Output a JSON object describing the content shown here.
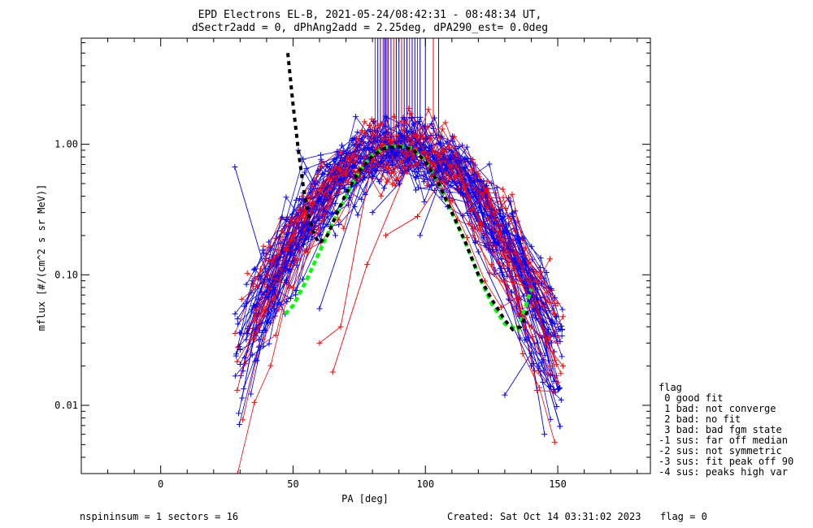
{
  "header": {
    "title_line1": "EPD Electrons EL-B, 2021-05-24/08:42:31 - 08:48:34 UT,",
    "title_line2": "dSectr2add = 0, dPhAng2add = 2.25deg, dPA290_est=   0.0deg"
  },
  "footer": {
    "left": "nspininsum =  1  sectors = 16",
    "created": "Created: Sat Oct 14 03:31:02 2023",
    "flag": "flag = 0"
  },
  "legend": {
    "title": "flag",
    "items": [
      " 0 good fit",
      " 1 bad: not converge",
      " 2 bad: no fit",
      " 3 bad: bad fgm state",
      "-1 sus: far off median",
      "-2 sus: not symmetric",
      "-3 sus: fit peak off 90",
      "-4 sus: peaks high var"
    ]
  },
  "colors": {
    "blue": "#0000ff",
    "red": "#ff0000",
    "green": "#00ff00",
    "black": "#000000"
  },
  "chart_data": {
    "type": "scatter",
    "xlabel": "PA [deg]",
    "ylabel": "mflux [#/(cm^2 s sr MeV)]",
    "xlim": [
      -30,
      185
    ],
    "ylim": [
      0.003,
      6.5
    ],
    "yscale": "log",
    "xticks": [
      0,
      50,
      100,
      150
    ],
    "xtick_labels": [
      "0",
      "50",
      "100",
      "150"
    ],
    "yticks": [
      0.01,
      0.1,
      1.0
    ],
    "ytick_labels": [
      "0.01",
      "0.10",
      "1.00"
    ],
    "peak_markers_x": [
      81,
      82,
      83,
      84,
      84.5,
      85,
      85.5,
      86,
      87,
      88,
      89,
      90,
      91,
      92,
      93,
      94,
      95,
      96,
      97,
      98,
      100,
      103,
      105
    ],
    "fit_curve_green": {
      "x": [
        47,
        50,
        55,
        60,
        65,
        70,
        75,
        80,
        85,
        90,
        95,
        100,
        105,
        110,
        115,
        120,
        125,
        130,
        135,
        140
      ],
      "y": [
        0.05,
        0.058,
        0.09,
        0.15,
        0.25,
        0.4,
        0.62,
        0.83,
        0.95,
        0.97,
        0.93,
        0.75,
        0.5,
        0.3,
        0.18,
        0.1,
        0.06,
        0.042,
        0.038,
        0.078
      ]
    },
    "fit_curve_black": {
      "x": [
        48,
        50,
        52,
        54,
        56,
        58,
        60,
        63,
        66,
        70,
        75,
        80,
        85,
        90,
        95,
        100,
        105,
        110,
        115,
        120,
        125,
        130,
        133,
        136,
        139
      ],
      "y": [
        5.0,
        2.0,
        0.9,
        0.45,
        0.28,
        0.2,
        0.175,
        0.2,
        0.28,
        0.42,
        0.62,
        0.82,
        0.94,
        0.96,
        0.92,
        0.74,
        0.5,
        0.3,
        0.18,
        0.1,
        0.065,
        0.045,
        0.038,
        0.04,
        0.055
      ]
    },
    "outlier_blue_lines": [
      {
        "x": [
          28,
          40,
          47
        ],
        "y": [
          0.67,
          0.1,
          0.05
        ]
      },
      {
        "x": [
          29,
          40,
          46
        ],
        "y": [
          0.046,
          0.1,
          0.15
        ]
      },
      {
        "x": [
          52,
          58,
          66
        ],
        "y": [
          0.9,
          0.5,
          0.2
        ]
      },
      {
        "x": [
          60,
          80,
          95
        ],
        "y": [
          0.055,
          0.9,
          0.95
        ]
      },
      {
        "x": [
          80,
          90,
          98
        ],
        "y": [
          0.3,
          0.5,
          0.9
        ]
      },
      {
        "x": [
          98,
          110,
          120
        ],
        "y": [
          0.2,
          0.9,
          0.3
        ]
      },
      {
        "x": [
          130,
          140,
          145
        ],
        "y": [
          0.012,
          0.025,
          0.006
        ]
      },
      {
        "x": [
          100,
          120,
          140
        ],
        "y": [
          1.1,
          0.15,
          0.02
        ]
      },
      {
        "x": [
          55,
          70,
          80
        ],
        "y": [
          0.65,
          0.85,
          0.95
        ]
      },
      {
        "x": [
          44,
          60,
          80
        ],
        "y": [
          0.13,
          0.2,
          0.8
        ]
      }
    ],
    "outlier_red_lines": [
      {
        "x": [
          65,
          78,
          96
        ],
        "y": [
          0.018,
          0.12,
          0.9
        ]
      },
      {
        "x": [
          60,
          68,
          80
        ],
        "y": [
          0.03,
          0.04,
          0.8
        ]
      },
      {
        "x": [
          85,
          97,
          110
        ],
        "y": [
          0.2,
          0.28,
          0.7
        ]
      },
      {
        "x": [
          118,
          135,
          150
        ],
        "y": [
          0.2,
          0.05,
          0.015
        ]
      },
      {
        "x": [
          125,
          140,
          152
        ],
        "y": [
          0.12,
          0.04,
          0.02
        ]
      },
      {
        "x": [
          40,
          50,
          60
        ],
        "y": [
          0.1,
          0.08,
          0.22
        ]
      },
      {
        "x": [
          130,
          140,
          148
        ],
        "y": [
          0.09,
          0.08,
          0.02
        ]
      }
    ]
  }
}
